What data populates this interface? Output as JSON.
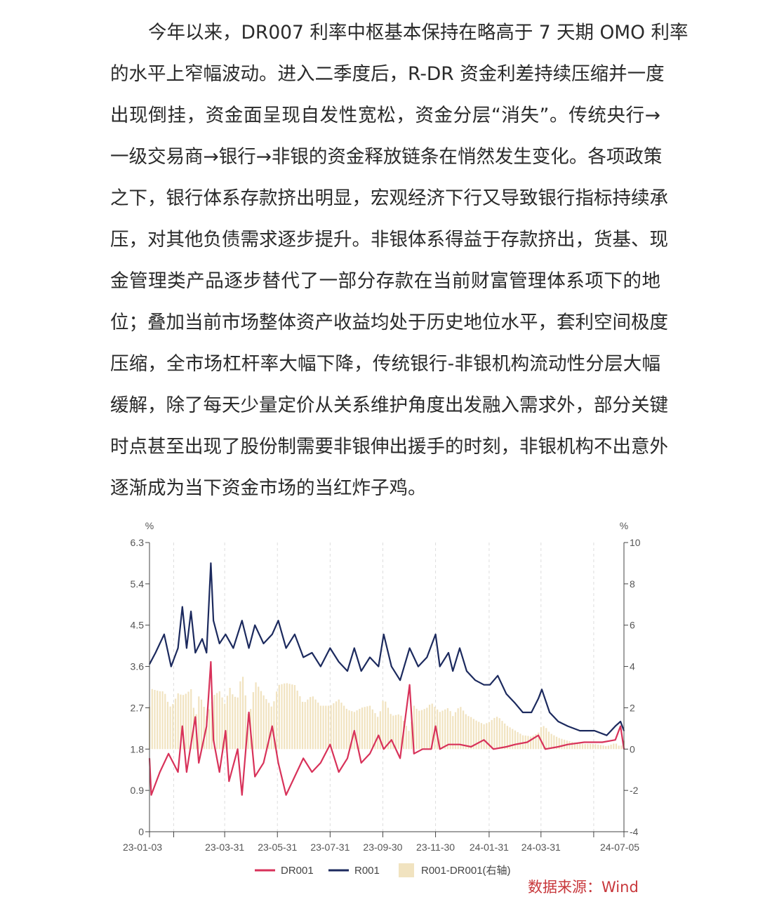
{
  "article": {
    "lines": [
      "今年以来，DR007 利率中枢基本保持在略高于 7 天期 OMO 利率",
      "的水平上窄幅波动。进入二季度后，R-DR 资金利差持续压缩并一度",
      "出现倒挂，资金面呈现自发性宽松，资金分层“消失”。传统央行→",
      "一级交易商→银行→非银的资金释放链条在悄然发生变化。各项政策",
      "之下，银行体系存款挤出明显，宏观经济下行又导致银行指标持续承",
      "压，对其他负债需求逐步提升。非银体系得益于存款挤出，货基、现",
      "金管理类产品逐步替代了一部分存款在当前财富管理体系项下的地",
      "位；叠加当前市场整体资产收益均处于历史地位水平，套利空间极度",
      "压缩，全市场杠杆率大幅下降，传统银行-非银机构流动性分层大幅",
      "缓解，除了每天少量定价从关系维护角度出发融入需求外，部分关键",
      "时点甚至出现了股份制需要非银伸出援手的时刻，非银机构不出意外",
      "逐渐成为当下资金市场的当红炸子鸡。"
    ]
  },
  "chart_data": {
    "type": "line",
    "left_unit": "%",
    "right_unit": "%",
    "ylim": [
      0,
      6.3
    ],
    "yticks": [
      "0",
      "0.9",
      "1.8",
      "2.7",
      "3.6",
      "4.5",
      "5.4",
      "6.3"
    ],
    "y2lim": [
      -4,
      10
    ],
    "y2ticks": [
      "-4",
      "-2",
      "0",
      "2",
      "4",
      "6",
      "8",
      "10"
    ],
    "xlim": [
      "2023-01-03",
      "2024-07-05"
    ],
    "xticks": [
      {
        "date": "2023-01-03",
        "label": "23-01-03"
      },
      {
        "date": "2023-01-31",
        "label": ""
      },
      {
        "date": "2023-03-31",
        "label": "23-03-31"
      },
      {
        "date": "2023-05-31",
        "label": "23-05-31"
      },
      {
        "date": "2023-07-31",
        "label": "23-07-31"
      },
      {
        "date": "2023-09-30",
        "label": "23-09-30"
      },
      {
        "date": "2023-11-30",
        "label": "23-11-30"
      },
      {
        "date": "2024-01-31",
        "label": "24-01-31"
      },
      {
        "date": "2024-03-31",
        "label": "24-03-31"
      },
      {
        "date": "2024-05-31",
        "label": ""
      },
      {
        "date": "2024-07-05",
        "label": "24-07-05"
      }
    ],
    "grid": "vertical-dashed",
    "legend_position": "bottom",
    "series": [
      {
        "name": "DR001",
        "axis": "left",
        "type": "line",
        "color": "#d8325a",
        "points": [
          [
            "2023-01-03",
            1.6
          ],
          [
            "2023-01-05",
            0.8
          ],
          [
            "2023-01-15",
            1.3
          ],
          [
            "2023-01-25",
            1.7
          ],
          [
            "2023-02-05",
            1.3
          ],
          [
            "2023-02-10",
            2.3
          ],
          [
            "2023-02-15",
            1.3
          ],
          [
            "2023-02-25",
            2.5
          ],
          [
            "2023-03-01",
            1.5
          ],
          [
            "2023-03-10",
            2.3
          ],
          [
            "2023-03-15",
            3.7
          ],
          [
            "2023-03-18",
            2.0
          ],
          [
            "2023-03-25",
            1.3
          ],
          [
            "2023-04-01",
            2.2
          ],
          [
            "2023-04-05",
            1.1
          ],
          [
            "2023-04-15",
            1.8
          ],
          [
            "2023-04-20",
            0.8
          ],
          [
            "2023-04-28",
            2.6
          ],
          [
            "2023-05-05",
            1.2
          ],
          [
            "2023-05-15",
            1.5
          ],
          [
            "2023-05-25",
            2.3
          ],
          [
            "2023-06-01",
            1.5
          ],
          [
            "2023-06-10",
            0.8
          ],
          [
            "2023-06-20",
            1.2
          ],
          [
            "2023-06-30",
            1.6
          ],
          [
            "2023-07-10",
            1.3
          ],
          [
            "2023-07-20",
            1.5
          ],
          [
            "2023-07-31",
            1.9
          ],
          [
            "2023-08-10",
            1.3
          ],
          [
            "2023-08-20",
            1.6
          ],
          [
            "2023-08-28",
            2.2
          ],
          [
            "2023-09-05",
            1.5
          ],
          [
            "2023-09-15",
            1.7
          ],
          [
            "2023-09-25",
            2.1
          ],
          [
            "2023-10-01",
            1.8
          ],
          [
            "2023-10-10",
            2.0
          ],
          [
            "2023-10-20",
            1.6
          ],
          [
            "2023-10-31",
            3.2
          ],
          [
            "2023-11-05",
            1.7
          ],
          [
            "2023-11-15",
            1.8
          ],
          [
            "2023-11-25",
            1.8
          ],
          [
            "2023-11-30",
            2.3
          ],
          [
            "2023-12-05",
            1.8
          ],
          [
            "2023-12-15",
            1.9
          ],
          [
            "2023-12-28",
            1.9
          ],
          [
            "2024-01-10",
            1.85
          ],
          [
            "2024-01-25",
            2.0
          ],
          [
            "2024-02-05",
            1.8
          ],
          [
            "2024-02-20",
            1.85
          ],
          [
            "2024-03-01",
            1.9
          ],
          [
            "2024-03-15",
            1.95
          ],
          [
            "2024-03-28",
            2.1
          ],
          [
            "2024-04-05",
            1.8
          ],
          [
            "2024-04-20",
            1.85
          ],
          [
            "2024-05-01",
            1.9
          ],
          [
            "2024-05-20",
            1.95
          ],
          [
            "2024-06-10",
            1.95
          ],
          [
            "2024-06-25",
            2.0
          ],
          [
            "2024-07-01",
            2.3
          ],
          [
            "2024-07-05",
            1.8
          ]
        ]
      },
      {
        "name": "R001",
        "axis": "left",
        "type": "line",
        "color": "#1c2a5e",
        "points": [
          [
            "2023-01-03",
            3.65
          ],
          [
            "2023-01-10",
            3.9
          ],
          [
            "2023-01-20",
            4.3
          ],
          [
            "2023-01-28",
            3.6
          ],
          [
            "2023-02-05",
            4.0
          ],
          [
            "2023-02-10",
            4.9
          ],
          [
            "2023-02-15",
            4.0
          ],
          [
            "2023-02-20",
            4.8
          ],
          [
            "2023-02-25",
            3.9
          ],
          [
            "2023-03-05",
            4.2
          ],
          [
            "2023-03-10",
            3.9
          ],
          [
            "2023-03-15",
            5.85
          ],
          [
            "2023-03-18",
            4.6
          ],
          [
            "2023-03-25",
            4.1
          ],
          [
            "2023-04-01",
            4.3
          ],
          [
            "2023-04-10",
            4.0
          ],
          [
            "2023-04-20",
            4.6
          ],
          [
            "2023-04-28",
            4.0
          ],
          [
            "2023-05-05",
            4.5
          ],
          [
            "2023-05-15",
            4.1
          ],
          [
            "2023-05-25",
            4.3
          ],
          [
            "2023-06-01",
            4.6
          ],
          [
            "2023-06-10",
            4.0
          ],
          [
            "2023-06-20",
            4.3
          ],
          [
            "2023-06-30",
            3.8
          ],
          [
            "2023-07-10",
            3.9
          ],
          [
            "2023-07-20",
            3.6
          ],
          [
            "2023-07-31",
            4.0
          ],
          [
            "2023-08-10",
            3.7
          ],
          [
            "2023-08-20",
            3.5
          ],
          [
            "2023-08-28",
            4.0
          ],
          [
            "2023-09-05",
            3.5
          ],
          [
            "2023-09-15",
            3.8
          ],
          [
            "2023-09-25",
            3.6
          ],
          [
            "2023-10-01",
            4.3
          ],
          [
            "2023-10-10",
            3.6
          ],
          [
            "2023-10-20",
            3.3
          ],
          [
            "2023-10-31",
            4.0
          ],
          [
            "2023-11-10",
            3.6
          ],
          [
            "2023-11-20",
            3.8
          ],
          [
            "2023-11-30",
            4.3
          ],
          [
            "2023-12-05",
            3.6
          ],
          [
            "2023-12-15",
            3.9
          ],
          [
            "2023-12-20",
            3.5
          ],
          [
            "2023-12-28",
            4.0
          ],
          [
            "2024-01-05",
            3.5
          ],
          [
            "2024-01-15",
            3.3
          ],
          [
            "2024-01-25",
            3.2
          ],
          [
            "2024-02-01",
            3.2
          ],
          [
            "2024-02-10",
            3.4
          ],
          [
            "2024-02-20",
            3.0
          ],
          [
            "2024-03-01",
            2.8
          ],
          [
            "2024-03-10",
            2.6
          ],
          [
            "2024-03-20",
            2.6
          ],
          [
            "2024-03-28",
            2.9
          ],
          [
            "2024-04-01",
            3.1
          ],
          [
            "2024-04-10",
            2.6
          ],
          [
            "2024-04-20",
            2.4
          ],
          [
            "2024-05-01",
            2.3
          ],
          [
            "2024-05-15",
            2.2
          ],
          [
            "2024-06-01",
            2.2
          ],
          [
            "2024-06-15",
            2.1
          ],
          [
            "2024-06-25",
            2.3
          ],
          [
            "2024-07-01",
            2.4
          ],
          [
            "2024-07-05",
            2.2
          ]
        ]
      },
      {
        "name": "R001-DR001(右轴)",
        "axis": "right",
        "type": "bar",
        "color": "#f1e3c0",
        "derived_from": [
          "R001",
          "DR001"
        ]
      }
    ],
    "legend": [
      "DR001",
      "R001",
      "R001-DR001(右轴)"
    ]
  },
  "source": "数据来源：Wind"
}
